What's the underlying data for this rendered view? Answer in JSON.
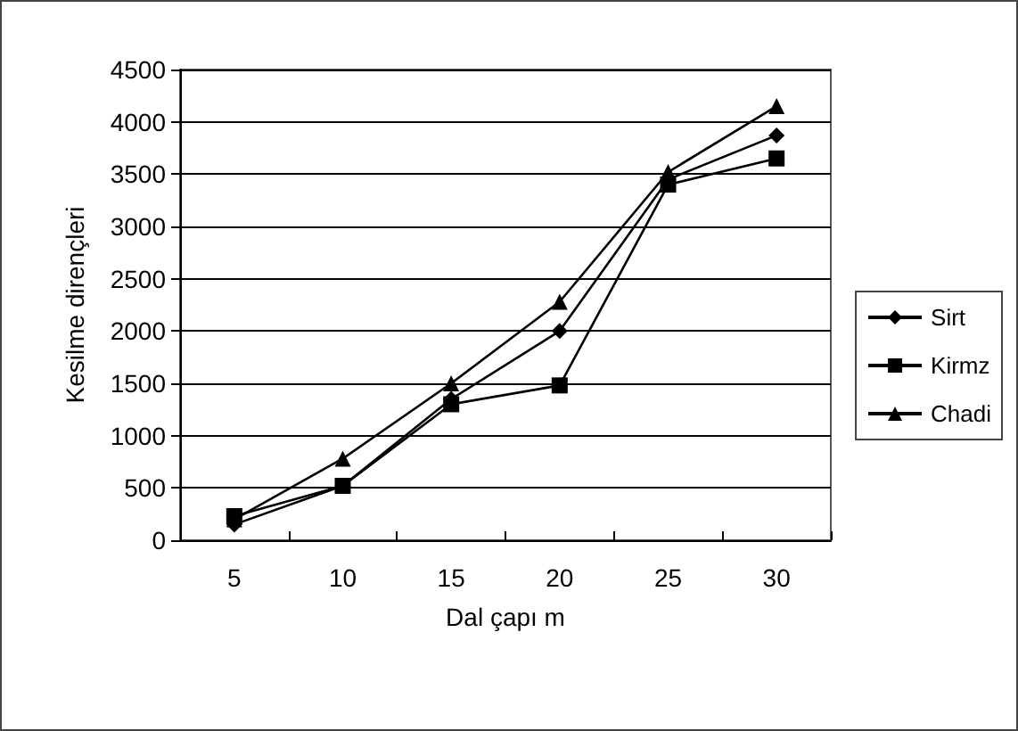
{
  "chart_data": {
    "type": "line",
    "xlabel": "Dal çapı m",
    "ylabel": "Kesilme dirençleri",
    "categories": [
      "5",
      "10",
      "15",
      "20",
      "25",
      "30"
    ],
    "series": [
      {
        "name": "Sirt",
        "color": "#000000",
        "marker": "diamond",
        "values": [
          150,
          520,
          1350,
          2000,
          3450,
          3870
        ]
      },
      {
        "name": "Kirmz",
        "color": "#000000",
        "marker": "square",
        "values": [
          230,
          520,
          1300,
          1480,
          3400,
          3650
        ]
      },
      {
        "name": "Chadi",
        "color": "#000000",
        "marker": "triangle",
        "values": [
          200,
          780,
          1500,
          2280,
          3520,
          4150
        ]
      }
    ],
    "ylim": [
      0,
      4500
    ],
    "yticks": [
      0,
      500,
      1000,
      1500,
      2000,
      2500,
      3000,
      3500,
      4000,
      4500
    ],
    "grid": "y",
    "legend": "right",
    "line_style": "solid"
  }
}
